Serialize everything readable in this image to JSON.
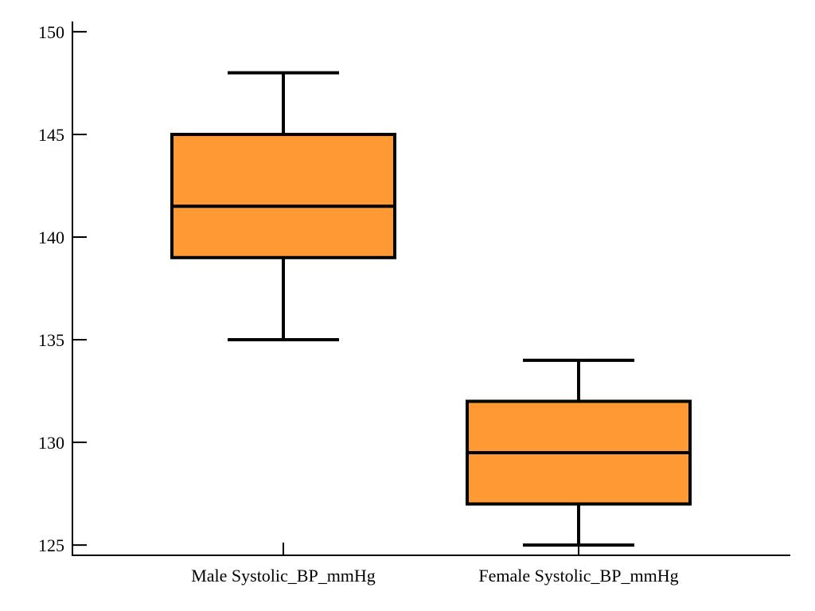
{
  "chart_data": {
    "type": "box",
    "categories": [
      "Male Systolic_BP_mmHg",
      "Female Systolic_BP_mmHg"
    ],
    "boxes": [
      {
        "name": "Male Systolic_BP_mmHg",
        "min": 135,
        "q1": 139,
        "median": 141.5,
        "q3": 145,
        "max": 148
      },
      {
        "name": "Female Systolic_BP_mmHg",
        "min": 125,
        "q1": 127,
        "median": 129.5,
        "q3": 132,
        "max": 134
      }
    ],
    "title": "",
    "xlabel": "",
    "ylabel": "",
    "ylim": [
      124.5,
      150.5
    ],
    "yticks": [
      125,
      130,
      135,
      140,
      145,
      150
    ],
    "ytick_labels": [
      "125",
      "130",
      "135",
      "140",
      "145",
      "150"
    ],
    "grid": false,
    "legend": "none",
    "colors": {
      "box_fill": "#FF9933",
      "line": "#000000"
    }
  }
}
